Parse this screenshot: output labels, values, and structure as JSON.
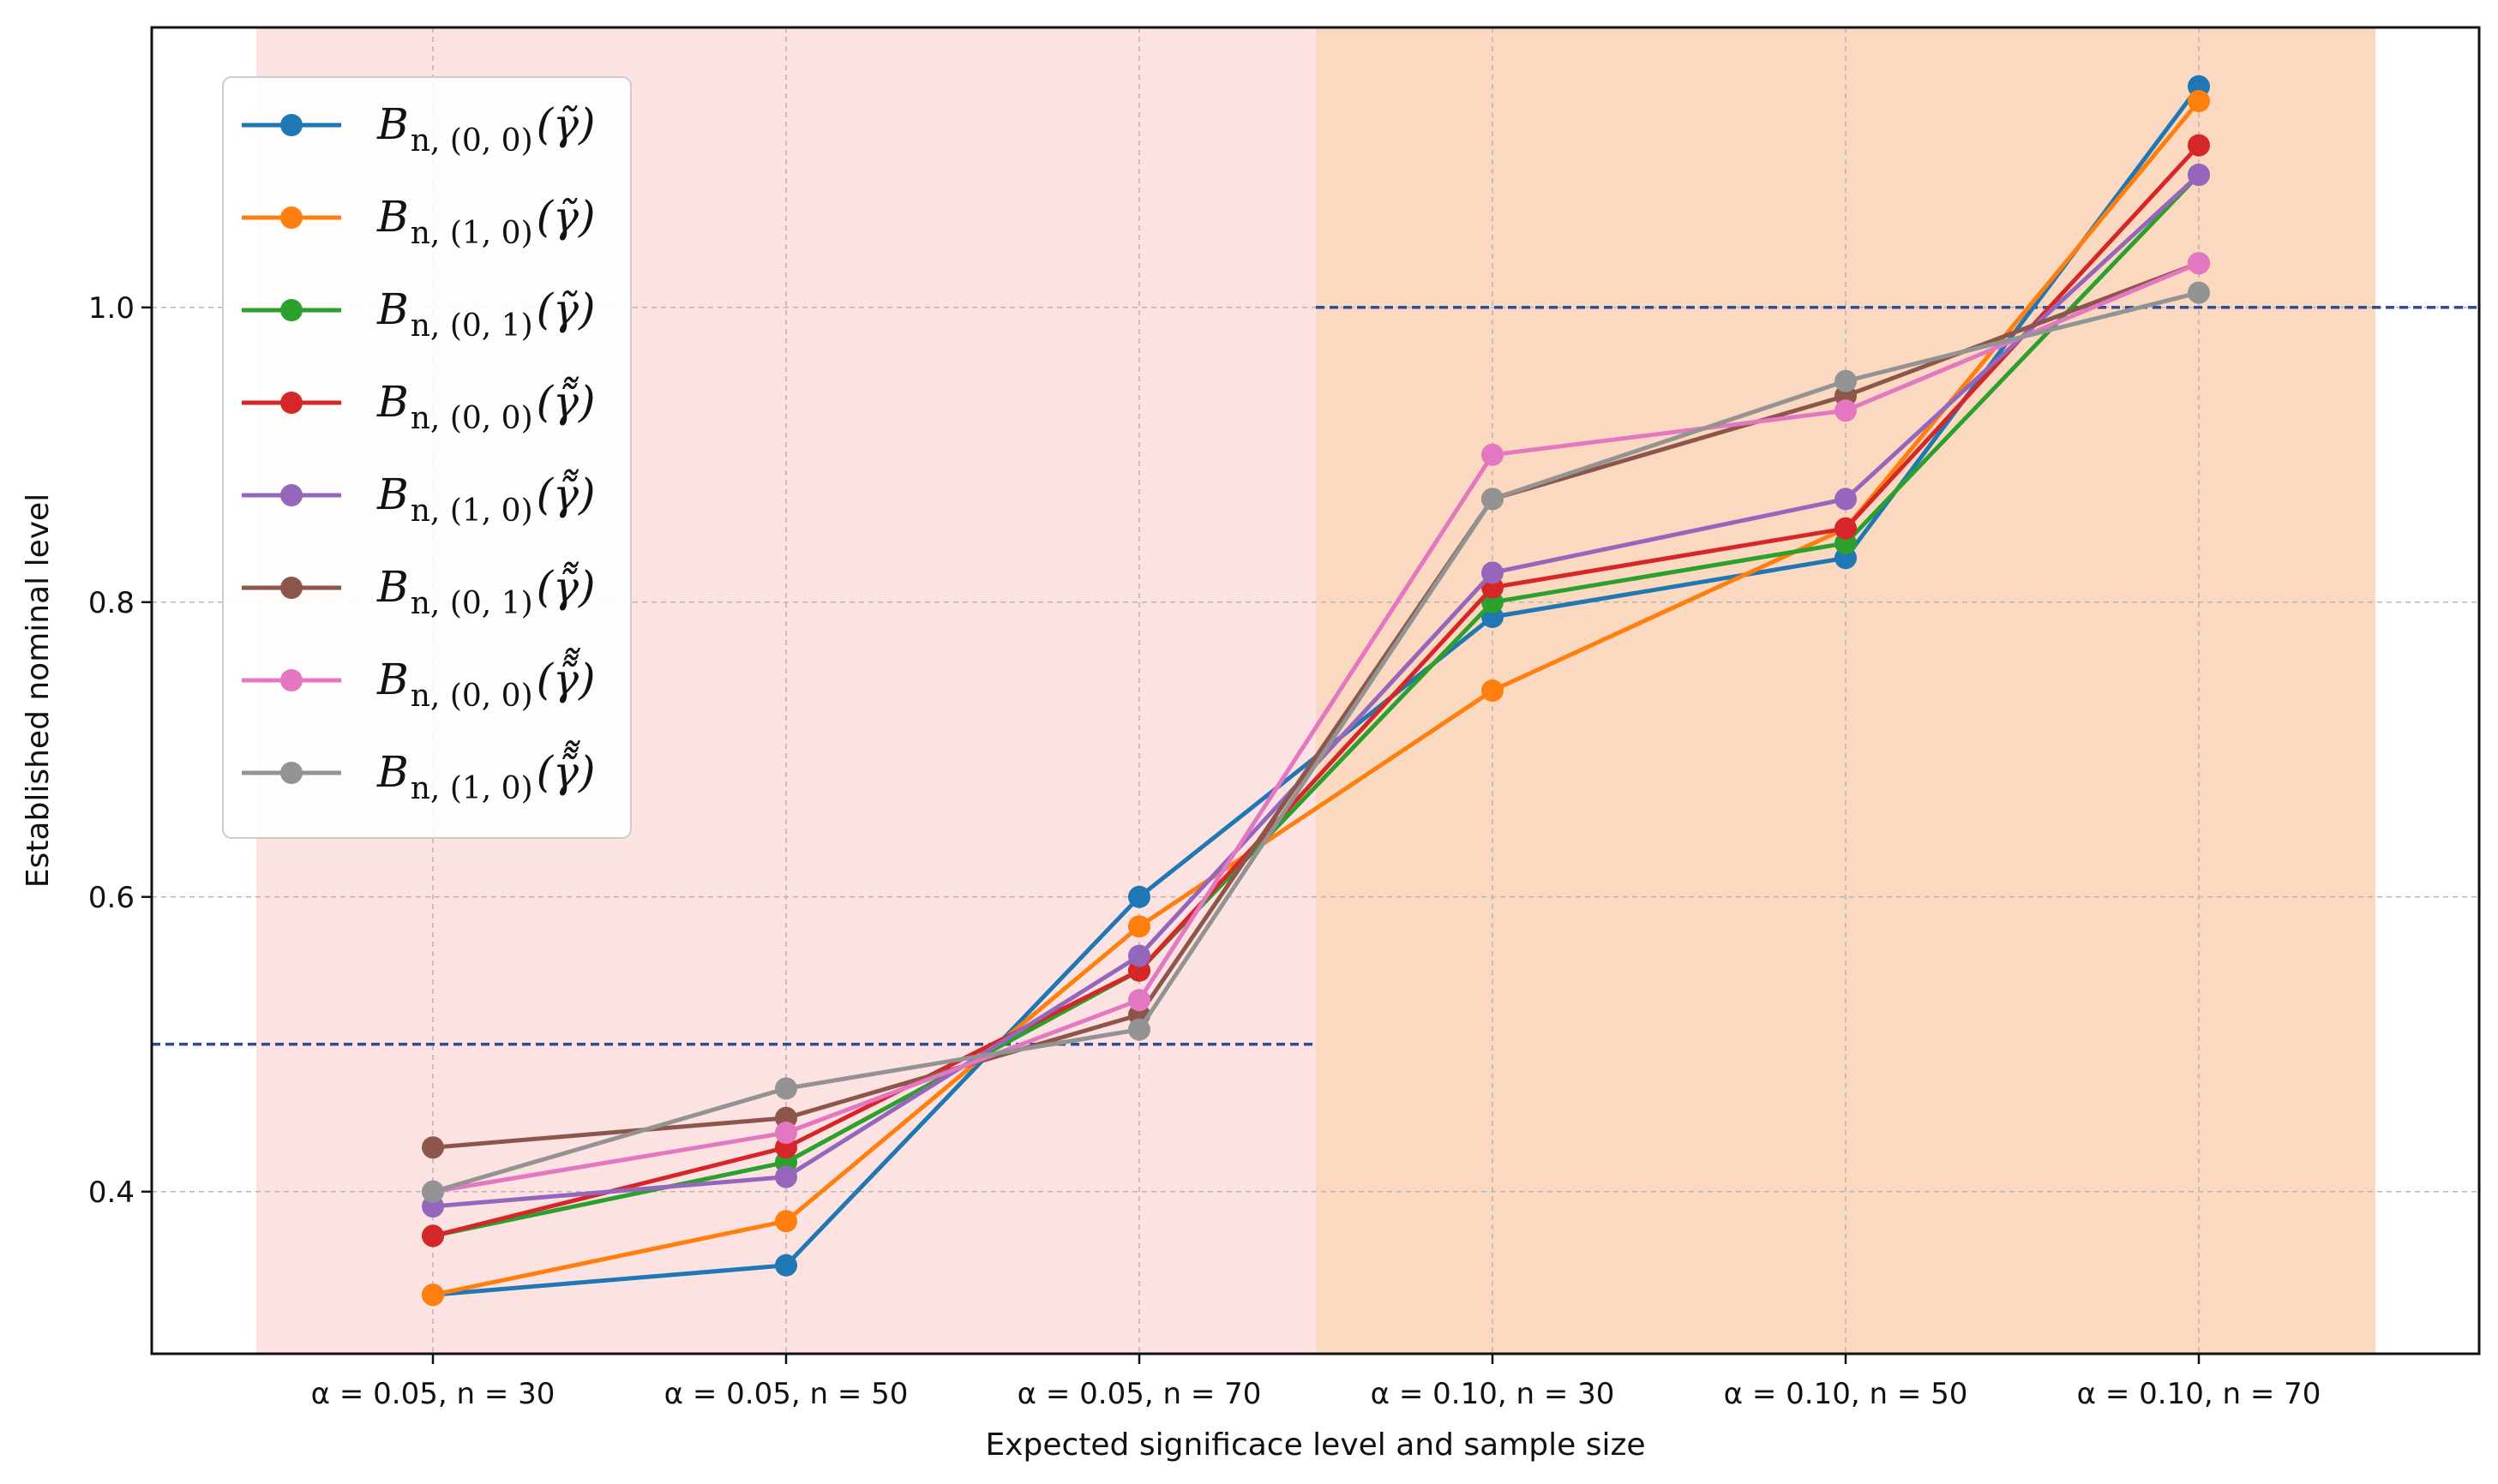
{
  "chart_data": {
    "type": "line",
    "title": "",
    "xlabel": "Expected significace level and sample size",
    "ylabel": "Established nominal level",
    "categories": [
      "α = 0.05, n = 30",
      "α = 0.05, n = 50",
      "α = 0.05, n = 70",
      "α = 0.10, n = 30",
      "α = 0.10, n = 50",
      "α = 0.10, n = 70"
    ],
    "ylim": [
      0.29,
      1.19
    ],
    "yticks": [
      "0.4",
      "0.6",
      "0.8",
      "1.0"
    ],
    "ytick_values": [
      0.4,
      0.6,
      0.8,
      1.0
    ],
    "grid": true,
    "legend_position": "upper-left",
    "shaded_regions": [
      {
        "from_category": 0,
        "to_category": 2,
        "color": "#fde2e2"
      },
      {
        "from_category": 3,
        "to_category": 5,
        "color": "#fbd9c0"
      }
    ],
    "reference_lines": [
      {
        "y": 0.5,
        "from_category": 0,
        "to_category": 2,
        "color": "#2f4b9a"
      },
      {
        "y": 1.0,
        "from_category": 3,
        "to_category": 5,
        "color": "#2f4b9a"
      }
    ],
    "series": [
      {
        "name": "B_{n,(0,0)}(γ̃)",
        "base": "B",
        "sub": "n, (0, 0)",
        "arg": "γ̃",
        "color": "#1f77b4",
        "values": [
          0.33,
          0.35,
          0.6,
          0.79,
          0.83,
          1.15
        ]
      },
      {
        "name": "B_{n,(1,0)}(γ̃)",
        "base": "B",
        "sub": "n, (1, 0)",
        "arg": "γ̃",
        "color": "#ff7f0e",
        "values": [
          0.33,
          0.38,
          0.58,
          0.74,
          0.85,
          1.14
        ]
      },
      {
        "name": "B_{n,(0,1)}(γ̃)",
        "base": "B",
        "sub": "n, (0, 1)",
        "arg": "γ̃",
        "color": "#2ca02c",
        "values": [
          0.37,
          0.42,
          0.55,
          0.8,
          0.84,
          1.09
        ]
      },
      {
        "name": "B_{n,(0,0)}(γ̃̃)",
        "base": "B",
        "sub": "n, (0, 0)",
        "arg": "γ̃̃",
        "color": "#d62728",
        "values": [
          0.37,
          0.43,
          0.55,
          0.81,
          0.85,
          1.11
        ]
      },
      {
        "name": "B_{n,(1,0)}(γ̃̃)",
        "base": "B",
        "sub": "n, (1, 0)",
        "arg": "γ̃̃",
        "color": "#9467bd",
        "values": [
          0.39,
          0.41,
          0.56,
          0.82,
          0.87,
          1.09
        ]
      },
      {
        "name": "B_{n,(0,1)}(γ̃̃)",
        "base": "B",
        "sub": "n, (0, 1)",
        "arg": "γ̃̃",
        "color": "#8c564b",
        "values": [
          0.43,
          0.45,
          0.52,
          0.87,
          0.94,
          1.03
        ]
      },
      {
        "name": "B_{n,(0,0)}(γ̃̃̃)",
        "base": "B",
        "sub": "n, (0, 0)",
        "arg": "γ̃̃̃",
        "color": "#e377c2",
        "values": [
          0.4,
          0.44,
          0.53,
          0.9,
          0.93,
          1.03
        ]
      },
      {
        "name": "B_{n,(1,0)}(γ̃̃̃)",
        "base": "B",
        "sub": "n, (1, 0)",
        "arg": "γ̃̃̃",
        "color": "#939393",
        "values": [
          0.4,
          0.47,
          0.51,
          0.87,
          0.95,
          1.01
        ]
      }
    ]
  }
}
